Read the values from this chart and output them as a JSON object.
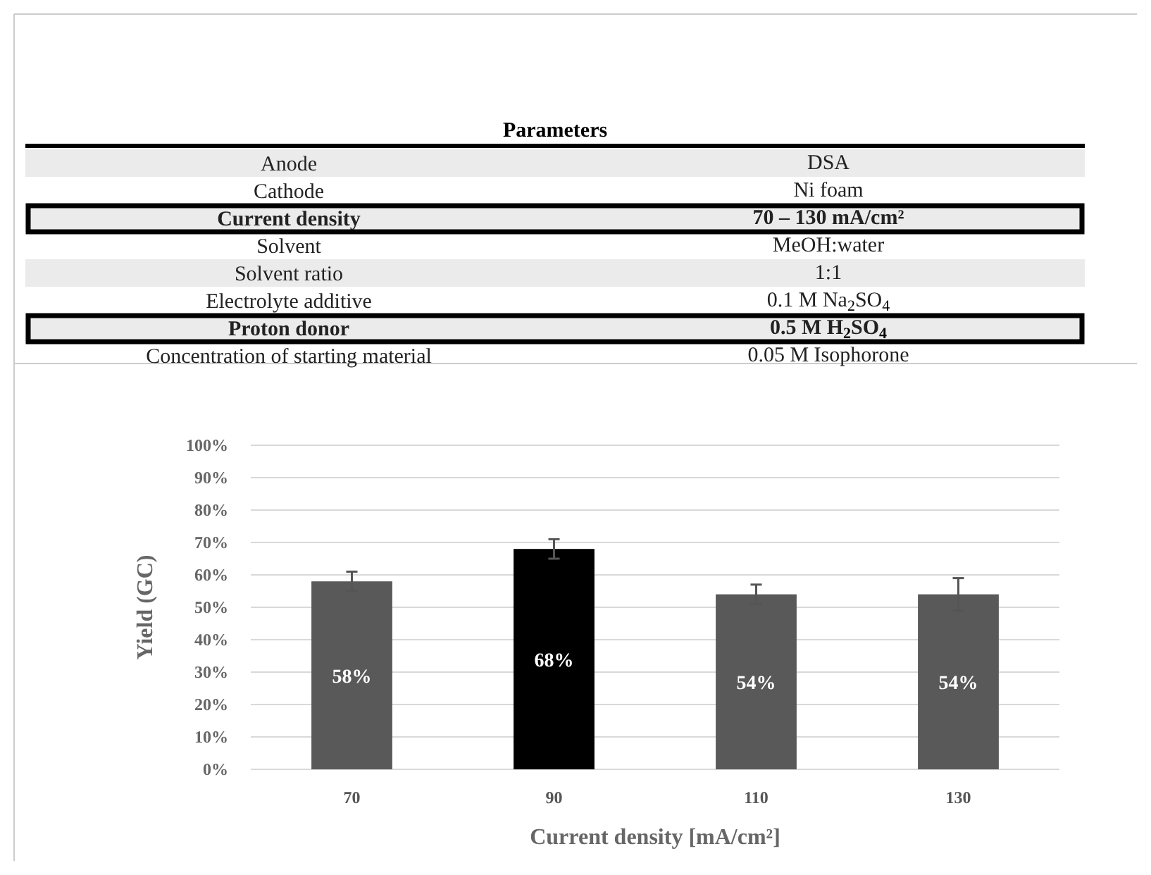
{
  "chart_data": [
    {
      "type": "other",
      "title": "Parameters",
      "annotations": [
        "Anode",
        "DSA",
        "Cathode",
        "Ni foam",
        "Current density",
        "70 – 130 mA/cm²",
        "Solvent",
        "MeOH:water",
        "Solvent ratio",
        "1:1",
        "Electrolyte additive",
        "0.1 M Na$_{2}$SO$_{4}$",
        "Proton donor",
        "0.5 M H$_{2}$SO$_{4}$",
        "Concentration of starting material",
        "0.05 M Isophorone"
      ]
    },
    {
      "type": "bar",
      "xlabel": "Current density [mA/cm²]",
      "ylabel": "Yield (GC)",
      "categories": [
        "70",
        "90",
        "110",
        "130"
      ],
      "values": [
        58,
        68,
        54,
        54
      ],
      "colors": [
        "#595959",
        "#000000",
        "#595959",
        "#595959"
      ],
      "errors": [
        3,
        3,
        3,
        5
      ],
      "value_labels": [
        "58%",
        "68%",
        "54%",
        "54%"
      ],
      "ylim": [
        0,
        100
      ],
      "yticks": [
        {
          "value": 0,
          "label": "0%"
        },
        {
          "value": 10,
          "label": "10%"
        },
        {
          "value": 20,
          "label": "20%"
        },
        {
          "value": 30,
          "label": "30%"
        },
        {
          "value": 40,
          "label": "40%"
        },
        {
          "value": 50,
          "label": "50%"
        },
        {
          "value": 60,
          "label": "60%"
        },
        {
          "value": 70,
          "label": "70%"
        },
        {
          "value": 80,
          "label": "80%"
        },
        {
          "value": 90,
          "label": "90%"
        },
        {
          "value": 100,
          "label": "100%"
        }
      ],
      "grid": "y"
    }
  ]
}
